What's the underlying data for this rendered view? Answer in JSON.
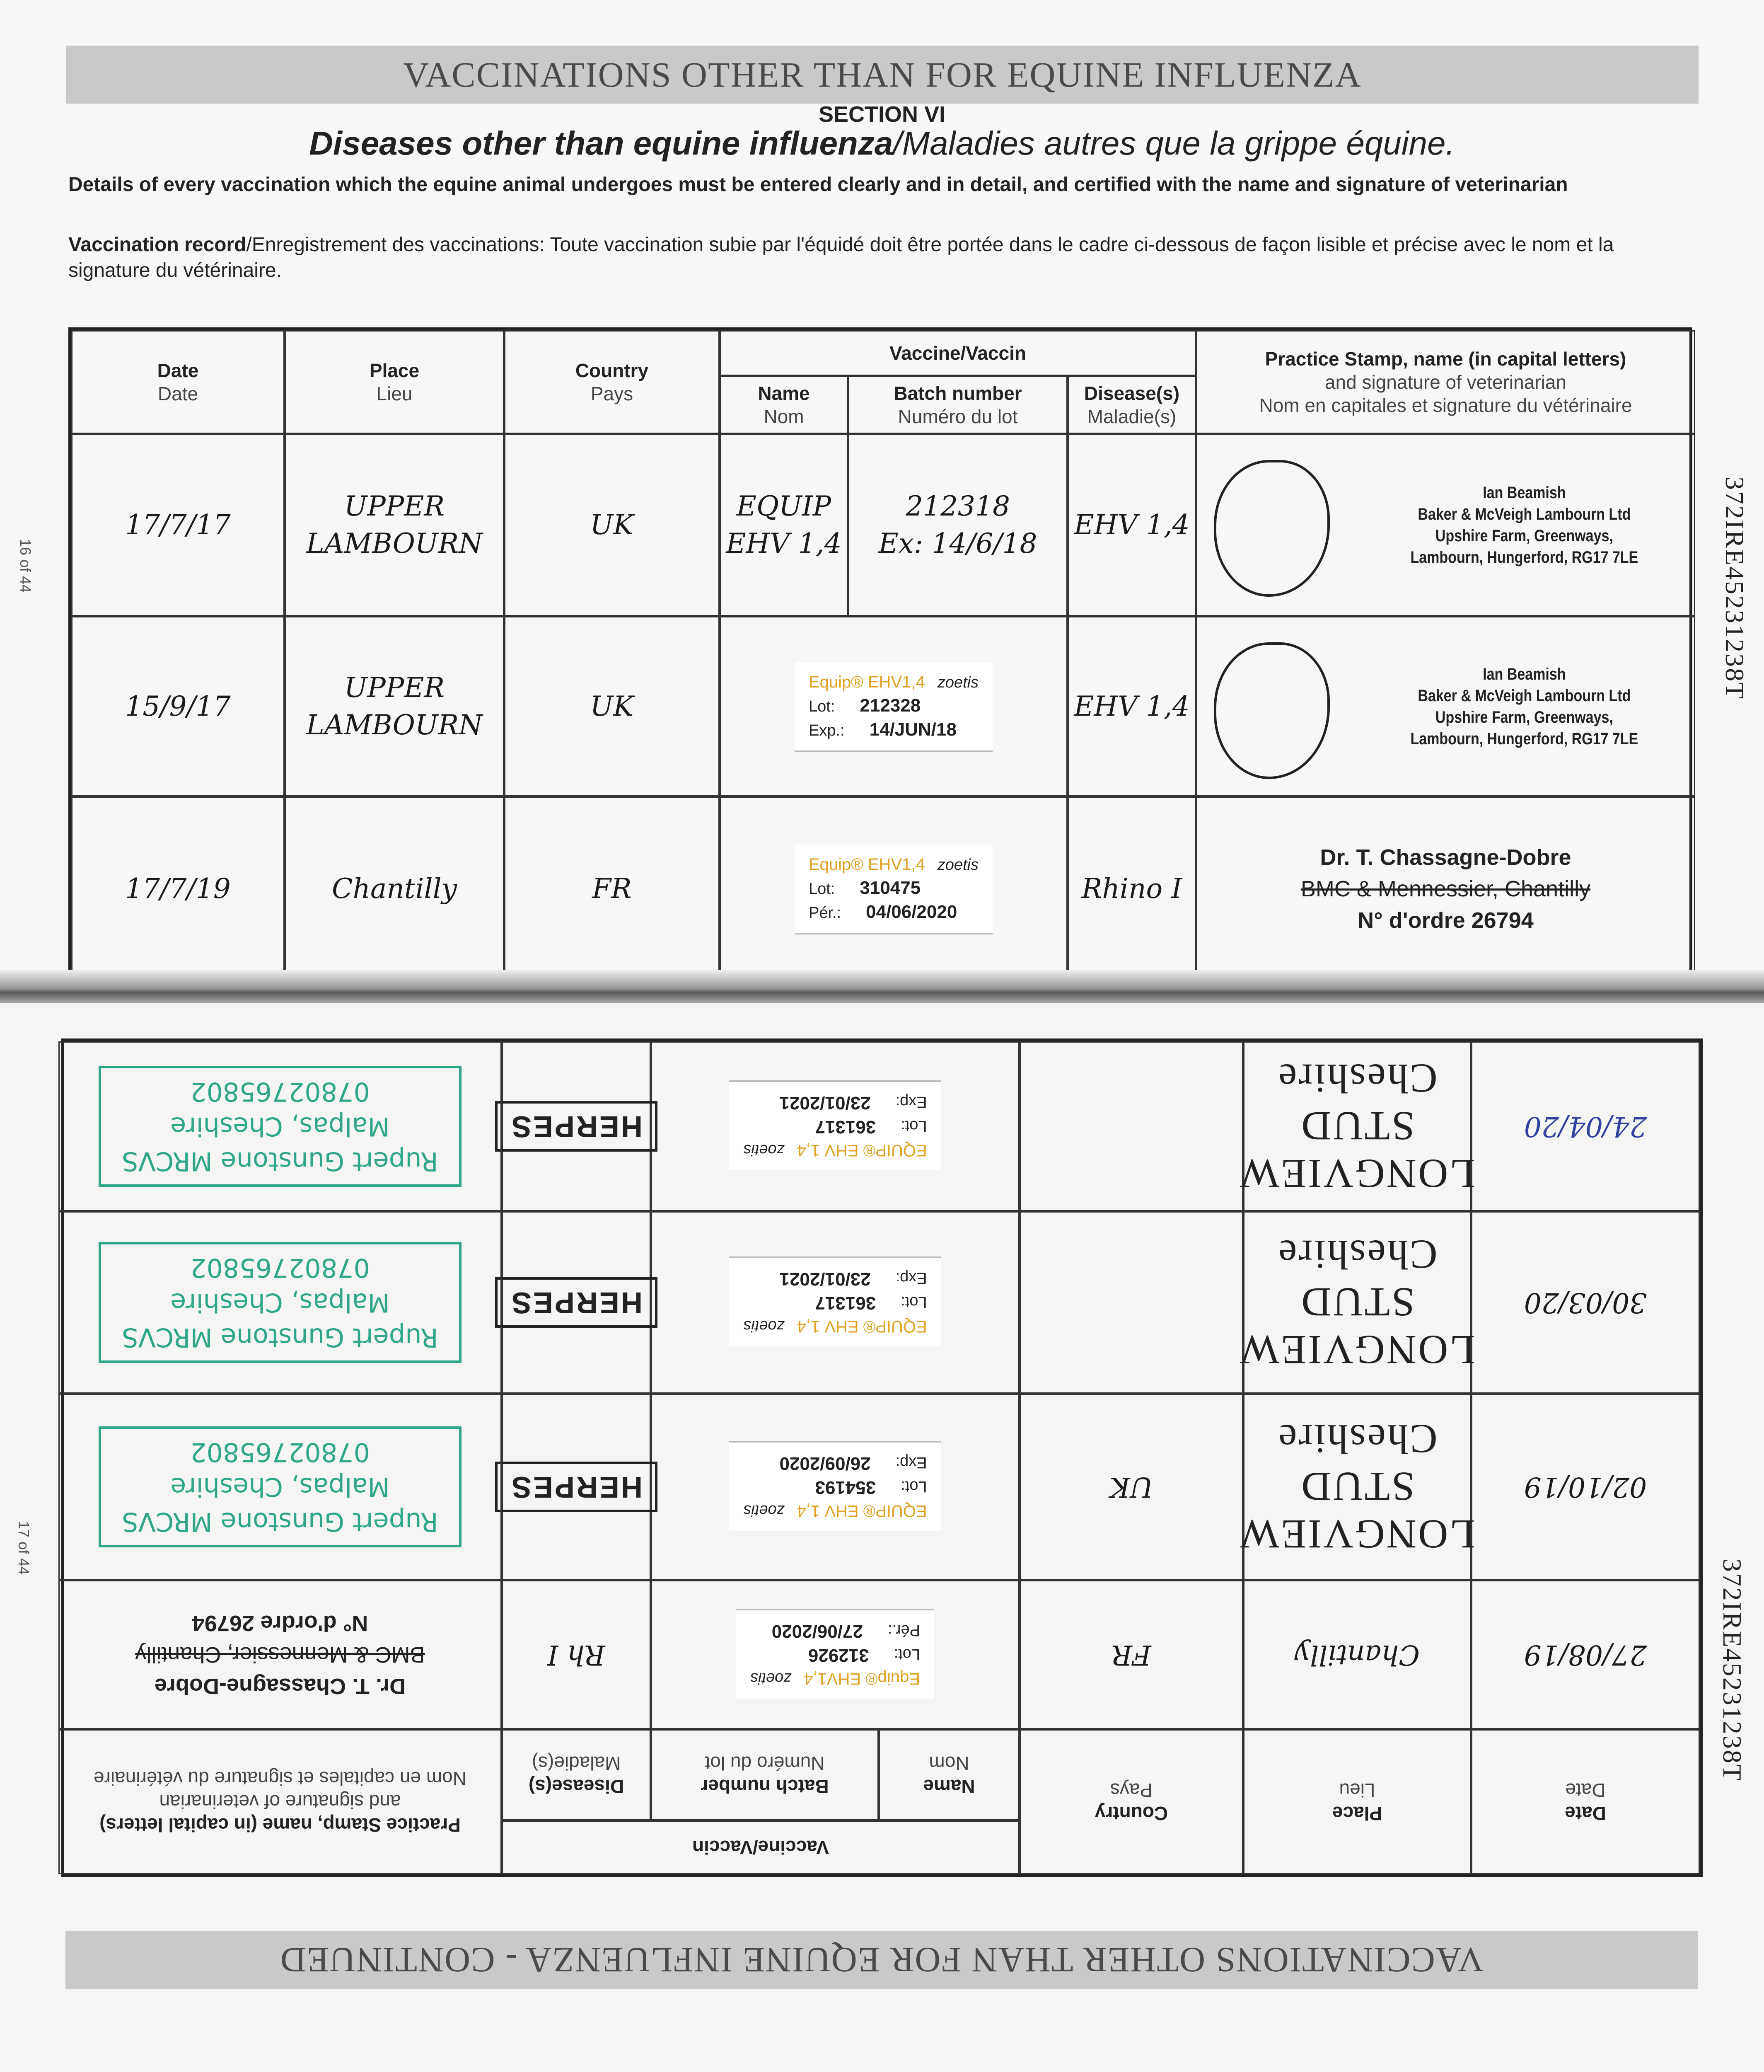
{
  "passport_id": "372IRE45231238T",
  "top": {
    "band_title": "VACCINATIONS OTHER THAN FOR EQUINE INFLUENZA",
    "section": "SECTION VI",
    "heading_bold": "Diseases other than equine influenza",
    "heading_rest": "/Maladies autres que la grippe équine.",
    "details": "Details of every vaccination which the equine animal undergoes must be entered clearly and in detail, and certified with the name and signature of veterinarian",
    "record_bold": "Vaccination record",
    "record_rest": "/Enregistrement des vaccinations: Toute vaccination subie par l'équidé doit être portée dans le cadre ci-dessous de façon lisible et précise avec le nom et la signature du vétérinaire.",
    "page_number": "16 of 44",
    "rows": [
      {
        "date": "17/7/17",
        "place": "UPPER LAMBOURN",
        "country": "UK",
        "name": "EQUIP EHV 1,4",
        "batch": "212318",
        "batch_exp": "Ex: 14/6/18",
        "disease": "EHV 1,4",
        "stamp": {
          "type": "vet",
          "lines": [
            "Ian Beamish",
            "Baker & McVeigh Lambourn Ltd",
            "Upshire Farm, Greenways,",
            "Lambourn, Hungerford, RG17 7LE"
          ]
        }
      },
      {
        "date": "15/9/17",
        "place": "UPPER LAMBOURN",
        "country": "UK",
        "label": {
          "brand": "Equip® EHV1,4",
          "maker": "zoetis",
          "lot_label": "Lot:",
          "lot": "212328",
          "exp_label": "Exp.:",
          "exp": "14/JUN/18"
        },
        "disease": "EHV 1,4",
        "stamp": {
          "type": "vet",
          "lines": [
            "Ian Beamish",
            "Baker & McVeigh Lambourn Ltd",
            "Upshire Farm, Greenways,",
            "Lambourn, Hungerford, RG17 7LE"
          ]
        }
      },
      {
        "date": "17/7/19",
        "place": "Chantilly",
        "country": "FR",
        "label": {
          "brand": "Equip® EHV1,4",
          "maker": "zoetis",
          "lot_label": "Lot:",
          "lot": "310475",
          "exp_label": "Pér.:",
          "exp": "04/06/2020"
        },
        "disease": "Rhino I",
        "stamp": {
          "type": "french",
          "lines": [
            "Dr. T. Chassagne-Dobre",
            "BMC & Mennessier, Chantilly",
            "N° d'ordre 26794"
          ]
        }
      }
    ]
  },
  "bottom": {
    "band_title": "VACCINATIONS OTHER THAN FOR EQUINE INFLUENZA - CONTINUED",
    "page_number": "17 of 44",
    "rows": [
      {
        "date": "27/08/19",
        "place": "Chantilly",
        "country": "FR",
        "label": {
          "brand": "Equip® EHV1,4",
          "maker": "zoetis",
          "lot_label": "Lot:",
          "lot": "312926",
          "exp_label": "Pér.:",
          "exp": "27/06/2020"
        },
        "disease": "Rh I",
        "stamp": {
          "type": "french",
          "lines": [
            "Dr. T. Chassagne-Dobre",
            "BMC & Mennessier, Chantilly",
            "N° d'ordre 26794"
          ]
        }
      },
      {
        "date": "02/10/19",
        "place": "LONGVIEW STUD Cheshire",
        "country": "UK",
        "label": {
          "brand": "EQUIP® EHV 1,4",
          "maker": "zoetis",
          "lot_label": "Lot:",
          "lot": "354193",
          "exp_label": "Exp:",
          "exp": "26/09/2020"
        },
        "disease": "HERPES",
        "stamp": {
          "type": "green",
          "lines": [
            "Rupert Gunstone MRCVS",
            "Malpas, Cheshire",
            "07802765802"
          ]
        }
      },
      {
        "date": "30/03/20",
        "place": "LONGVIEW STUD Cheshire",
        "country": "",
        "label": {
          "brand": "EQUIP® EHV 1,4",
          "maker": "zoetis",
          "lot_label": "Lot:",
          "lot": "361317",
          "exp_label": "Exp:",
          "exp": "23/01/2021"
        },
        "disease": "HERPES",
        "stamp": {
          "type": "green",
          "lines": [
            "Rupert Gunstone MRCVS",
            "Malpas, Cheshire",
            "07802765802"
          ]
        }
      },
      {
        "date": "24/04/20",
        "place": "LONGVIEW STUD Cheshire",
        "country": "",
        "label": {
          "brand": "EQUIP® EHV 1,4",
          "maker": "zoetis",
          "lot_label": "Lot:",
          "lot": "361317",
          "exp_label": "Exp:",
          "exp": "23/01/2021"
        },
        "disease": "HERPES",
        "stamp": {
          "type": "green",
          "lines": [
            "Rupert Gunstone MRCVS",
            "Malpas, Cheshire",
            "07802765802"
          ]
        }
      }
    ]
  },
  "headers": {
    "date": "Date",
    "date_fr": "Date",
    "place": "Place",
    "place_fr": "Lieu",
    "country": "Country",
    "country_fr": "Pays",
    "vaccine": "Vaccine/Vaccin",
    "name": "Name",
    "name_fr": "Nom",
    "batch": "Batch number",
    "batch_fr": "Numéro du lot",
    "disease": "Disease(s)",
    "disease_fr": "Maladie(s)",
    "practice_1": "Practice Stamp, name (in capital letters)",
    "practice_2": "and signature of veterinarian",
    "practice_fr": "Nom en capitales et signature du vétérinaire"
  },
  "colors": {
    "green_stamp": "#2fa58a",
    "label_brand": "#e0a020",
    "blue_ink": "#3040a0"
  }
}
